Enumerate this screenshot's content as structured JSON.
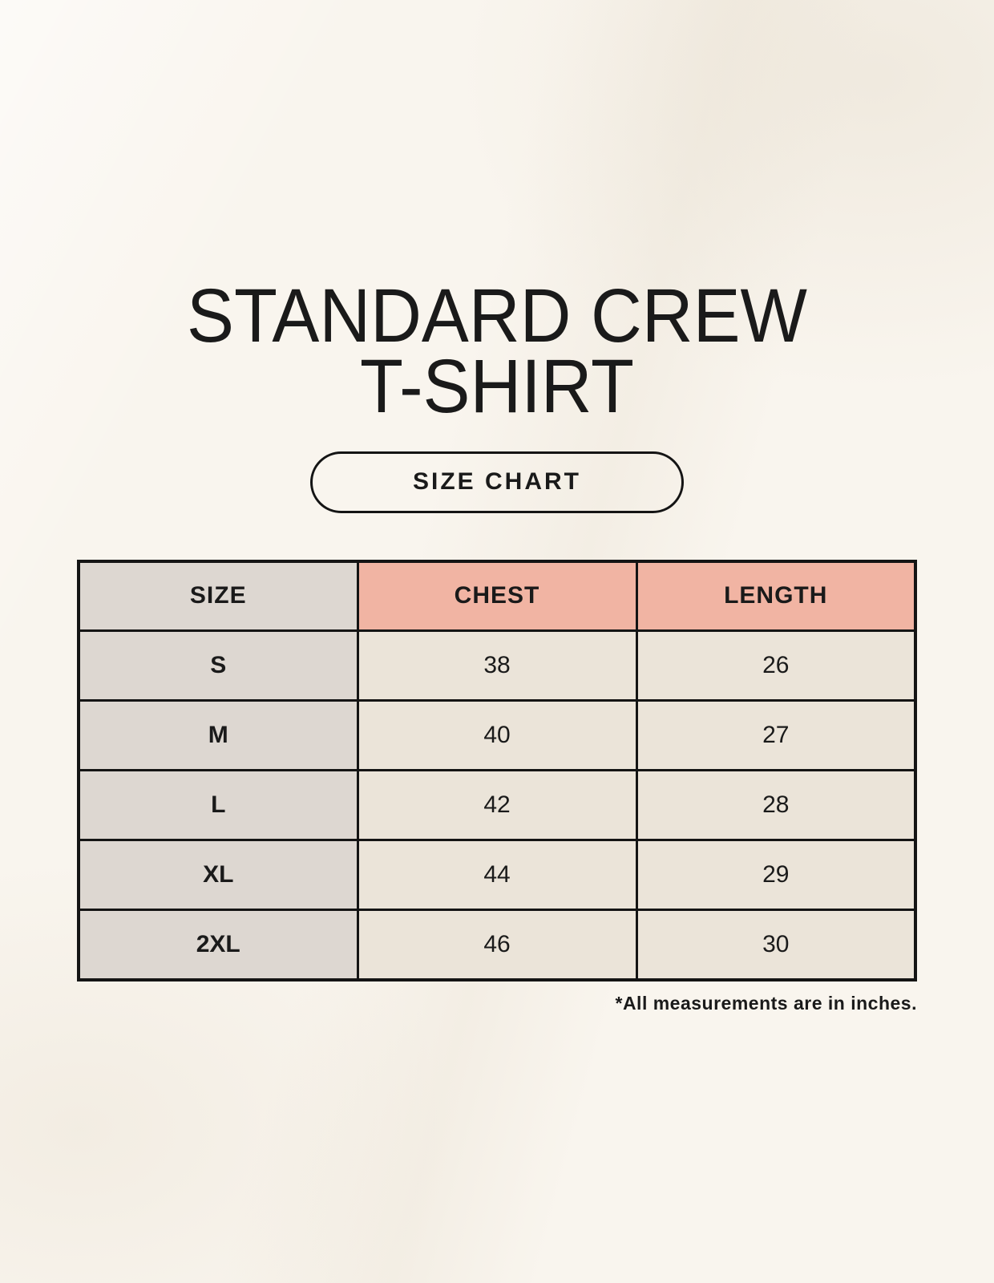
{
  "header": {
    "title_line1": "STANDARD CREW",
    "title_line2": "T-SHIRT",
    "badge_label": "SIZE CHART"
  },
  "chart_data": {
    "type": "table",
    "title": "STANDARD CREW T-SHIRT",
    "columns": [
      "SIZE",
      "CHEST",
      "LENGTH"
    ],
    "rows": [
      [
        "S",
        38,
        26
      ],
      [
        "M",
        40,
        27
      ],
      [
        "L",
        42,
        28
      ],
      [
        "XL",
        44,
        29
      ],
      [
        "2XL",
        46,
        30
      ]
    ],
    "units": "inches",
    "note": "*All measurements are in inches."
  },
  "colors": {
    "background": "#f9f5ee",
    "size_column_bg": "#ddd7d1",
    "accent_header_bg": "#f1b4a3",
    "cell_bg": "#ebe4d9",
    "table_border": "#141414",
    "text": "#1a1a1a"
  }
}
